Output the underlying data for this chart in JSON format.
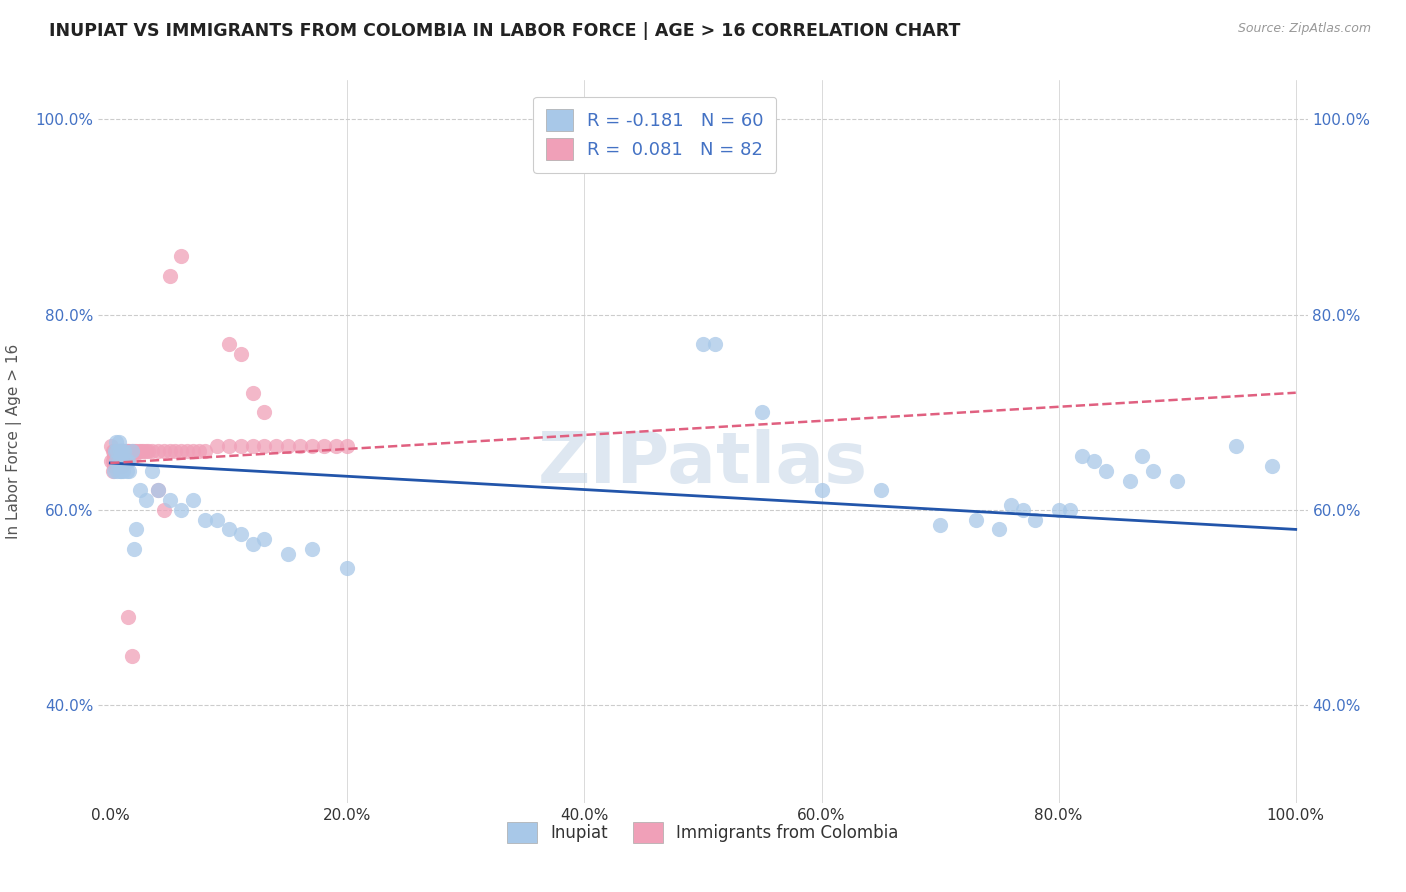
{
  "title": "INUPIAT VS IMMIGRANTS FROM COLOMBIA IN LABOR FORCE | AGE > 16 CORRELATION CHART",
  "source": "Source: ZipAtlas.com",
  "ylabel": "In Labor Force | Age > 16",
  "xlim": [
    -0.01,
    1.01
  ],
  "ylim": [
    0.3,
    1.04
  ],
  "xticks": [
    0.0,
    0.2,
    0.4,
    0.6,
    0.8,
    1.0
  ],
  "xtick_labels": [
    "0.0%",
    "20.0%",
    "40.0%",
    "60.0%",
    "80.0%",
    "100.0%"
  ],
  "ytick_labels": [
    "40.0%",
    "60.0%",
    "80.0%",
    "100.0%"
  ],
  "yticks": [
    0.4,
    0.6,
    0.8,
    1.0
  ],
  "legend_blue_label": "R = -0.181   N = 60",
  "legend_pink_label": "R =  0.081   N = 82",
  "blue_color": "#A8C8E8",
  "pink_color": "#F0A0B8",
  "blue_line_color": "#2255AA",
  "pink_line_color": "#E06080",
  "background_color": "#FFFFFF",
  "grid_color": "#CCCCCC",
  "blue_scatter_x": [
    0.003,
    0.004,
    0.005,
    0.005,
    0.006,
    0.006,
    0.007,
    0.007,
    0.008,
    0.008,
    0.009,
    0.01,
    0.01,
    0.011,
    0.012,
    0.013,
    0.014,
    0.015,
    0.016,
    0.018,
    0.02,
    0.022,
    0.025,
    0.03,
    0.035,
    0.04,
    0.05,
    0.06,
    0.07,
    0.08,
    0.09,
    0.1,
    0.11,
    0.12,
    0.13,
    0.15,
    0.17,
    0.2,
    0.5,
    0.51,
    0.55,
    0.6,
    0.65,
    0.7,
    0.73,
    0.75,
    0.76,
    0.77,
    0.78,
    0.8,
    0.81,
    0.82,
    0.83,
    0.84,
    0.86,
    0.87,
    0.88,
    0.9,
    0.95,
    0.98
  ],
  "blue_scatter_y": [
    0.64,
    0.66,
    0.65,
    0.67,
    0.64,
    0.66,
    0.65,
    0.67,
    0.64,
    0.66,
    0.64,
    0.65,
    0.66,
    0.64,
    0.66,
    0.65,
    0.64,
    0.65,
    0.64,
    0.66,
    0.56,
    0.58,
    0.62,
    0.61,
    0.64,
    0.62,
    0.61,
    0.6,
    0.61,
    0.59,
    0.59,
    0.58,
    0.575,
    0.565,
    0.57,
    0.555,
    0.56,
    0.54,
    0.77,
    0.77,
    0.7,
    0.62,
    0.62,
    0.585,
    0.59,
    0.58,
    0.605,
    0.6,
    0.59,
    0.6,
    0.6,
    0.655,
    0.65,
    0.64,
    0.63,
    0.655,
    0.64,
    0.63,
    0.665,
    0.645
  ],
  "pink_scatter_x": [
    0.001,
    0.001,
    0.002,
    0.002,
    0.002,
    0.003,
    0.003,
    0.003,
    0.004,
    0.004,
    0.004,
    0.005,
    0.005,
    0.005,
    0.006,
    0.006,
    0.006,
    0.007,
    0.007,
    0.007,
    0.008,
    0.008,
    0.008,
    0.009,
    0.009,
    0.01,
    0.01,
    0.01,
    0.011,
    0.011,
    0.012,
    0.012,
    0.013,
    0.013,
    0.014,
    0.014,
    0.015,
    0.015,
    0.016,
    0.016,
    0.018,
    0.018,
    0.02,
    0.02,
    0.022,
    0.024,
    0.026,
    0.028,
    0.03,
    0.032,
    0.035,
    0.04,
    0.045,
    0.05,
    0.055,
    0.06,
    0.065,
    0.07,
    0.075,
    0.08,
    0.09,
    0.1,
    0.11,
    0.12,
    0.13,
    0.14,
    0.15,
    0.16,
    0.17,
    0.18,
    0.19,
    0.2,
    0.12,
    0.13,
    0.05,
    0.06,
    0.1,
    0.11,
    0.015,
    0.018,
    0.04,
    0.045
  ],
  "pink_scatter_y": [
    0.665,
    0.65,
    0.66,
    0.65,
    0.64,
    0.66,
    0.655,
    0.645,
    0.655,
    0.65,
    0.66,
    0.655,
    0.65,
    0.66,
    0.655,
    0.65,
    0.645,
    0.66,
    0.655,
    0.65,
    0.655,
    0.65,
    0.66,
    0.655,
    0.65,
    0.66,
    0.655,
    0.645,
    0.66,
    0.655,
    0.66,
    0.65,
    0.66,
    0.655,
    0.66,
    0.655,
    0.66,
    0.655,
    0.66,
    0.655,
    0.66,
    0.655,
    0.66,
    0.655,
    0.66,
    0.66,
    0.66,
    0.66,
    0.66,
    0.66,
    0.66,
    0.66,
    0.66,
    0.66,
    0.66,
    0.66,
    0.66,
    0.66,
    0.66,
    0.66,
    0.665,
    0.665,
    0.665,
    0.665,
    0.665,
    0.665,
    0.665,
    0.665,
    0.665,
    0.665,
    0.665,
    0.665,
    0.72,
    0.7,
    0.84,
    0.86,
    0.77,
    0.76,
    0.49,
    0.45,
    0.62,
    0.6
  ],
  "blue_trend_x": [
    0.0,
    1.0
  ],
  "blue_trend_y": [
    0.648,
    0.58
  ],
  "pink_trend_x": [
    0.0,
    1.0
  ],
  "pink_trend_y": [
    0.648,
    0.72
  ]
}
